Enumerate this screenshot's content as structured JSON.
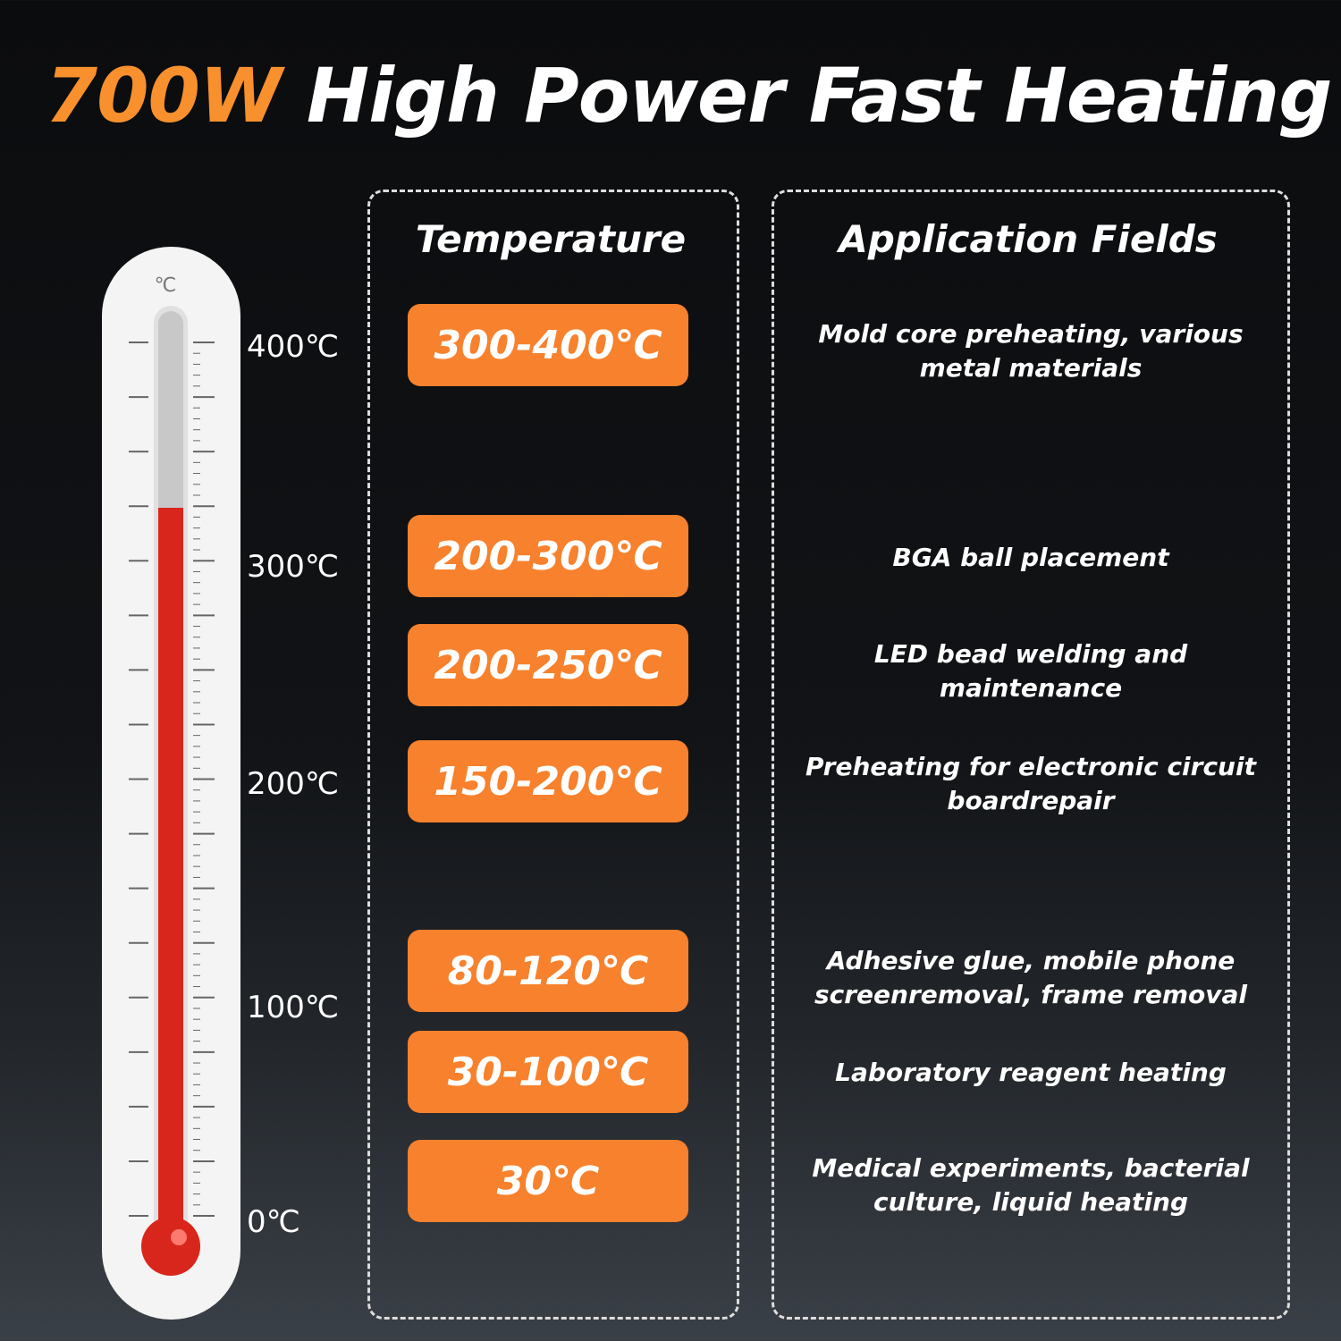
{
  "header": {
    "highlight": "700W",
    "title": "High Power Fast Heating"
  },
  "thermometer": {
    "unit": "℃",
    "labels": [
      "400℃",
      "300℃",
      "200℃",
      "100℃",
      "0℃"
    ]
  },
  "columns": {
    "temperature": "Temperature",
    "applications": "Application Fields"
  },
  "rows": [
    {
      "range": "300-400℃",
      "application": [
        "Mold core preheating, various",
        "metal materials"
      ]
    },
    {
      "range": "200-300℃",
      "application": [
        "BGA ball placement"
      ]
    },
    {
      "range": "200-250℃",
      "application": [
        "LED bead welding and",
        "maintenance"
      ]
    },
    {
      "range": "150-200℃",
      "application": [
        "Preheating for electronic circuit",
        "boardrepair"
      ]
    },
    {
      "range": "80-120℃",
      "application": [
        "Adhesive glue, mobile phone",
        "screenremoval, frame removal"
      ]
    },
    {
      "range": "30-100℃",
      "application": [
        "Laboratory reagent heating"
      ]
    },
    {
      "range": "30℃",
      "application": [
        "Medical experiments, bacterial",
        "culture, liquid heating"
      ]
    }
  ]
}
